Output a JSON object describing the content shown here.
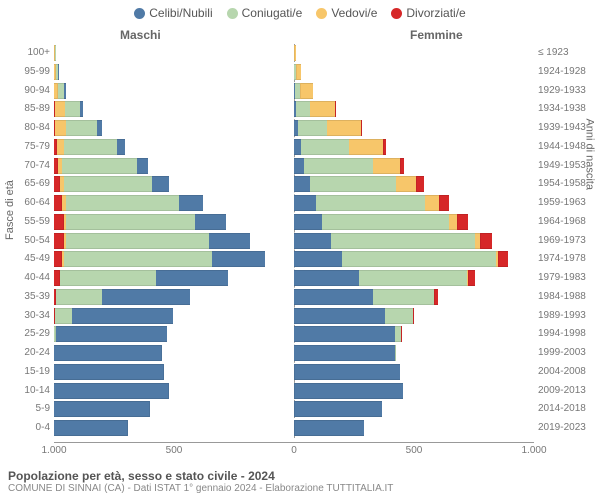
{
  "chart": {
    "type": "population-pyramid",
    "legend": [
      {
        "label": "Celibi/Nubili",
        "color": "#507aa6"
      },
      {
        "label": "Coniugati/e",
        "color": "#b7d6ae"
      },
      {
        "label": "Vedovi/e",
        "color": "#f7c66a"
      },
      {
        "label": "Divorziati/e",
        "color": "#d62728"
      }
    ],
    "headers": {
      "male": "Maschi",
      "female": "Femmine"
    },
    "y_title_left": "Fasce di età",
    "y_title_right": "Anni di nascita",
    "axis_color": "#999",
    "text_color": "#777",
    "background_color": "#ffffff",
    "x_max": 1000,
    "x_ticks": [
      -1000,
      -500,
      0,
      500,
      1000
    ],
    "x_tick_labels": [
      "1.000",
      "500",
      "0",
      "500",
      "1.000"
    ],
    "age_labels": [
      "0-4",
      "5-9",
      "10-14",
      "15-19",
      "20-24",
      "25-29",
      "30-34",
      "35-39",
      "40-44",
      "45-49",
      "50-54",
      "55-59",
      "60-64",
      "65-69",
      "70-74",
      "75-79",
      "80-84",
      "85-89",
      "90-94",
      "95-99",
      "100+"
    ],
    "birth_labels": [
      "2019-2023",
      "2014-2018",
      "2009-2013",
      "2004-2008",
      "1999-2003",
      "1994-1998",
      "1989-1993",
      "1984-1988",
      "1979-1983",
      "1974-1978",
      "1969-1973",
      "1964-1968",
      "1959-1963",
      "1954-1958",
      "1949-1953",
      "1944-1948",
      "1939-1943",
      "1934-1938",
      "1929-1933",
      "1924-1928",
      "≤ 1923"
    ],
    "colors": [
      "#507aa6",
      "#b7d6ae",
      "#f7c66a",
      "#d62728"
    ],
    "male": [
      [
        310,
        0,
        0,
        0
      ],
      [
        400,
        0,
        0,
        0
      ],
      [
        480,
        0,
        0,
        0
      ],
      [
        460,
        0,
        0,
        0
      ],
      [
        450,
        0,
        0,
        0
      ],
      [
        460,
        10,
        0,
        0
      ],
      [
        420,
        70,
        0,
        4
      ],
      [
        370,
        190,
        0,
        8
      ],
      [
        300,
        400,
        0,
        25
      ],
      [
        220,
        620,
        5,
        35
      ],
      [
        170,
        595,
        10,
        40
      ],
      [
        130,
        535,
        12,
        40
      ],
      [
        100,
        470,
        15,
        35
      ],
      [
        70,
        370,
        15,
        25
      ],
      [
        45,
        310,
        20,
        15
      ],
      [
        35,
        220,
        30,
        12
      ],
      [
        20,
        130,
        45,
        6
      ],
      [
        12,
        65,
        40,
        4
      ],
      [
        5,
        25,
        18,
        0
      ],
      [
        2,
        8,
        8,
        0
      ],
      [
        0,
        2,
        2,
        0
      ]
    ],
    "female": [
      [
        290,
        0,
        0,
        0
      ],
      [
        365,
        0,
        0,
        0
      ],
      [
        455,
        0,
        0,
        0
      ],
      [
        440,
        0,
        0,
        0
      ],
      [
        420,
        2,
        0,
        0
      ],
      [
        420,
        25,
        0,
        2
      ],
      [
        380,
        115,
        0,
        6
      ],
      [
        330,
        255,
        0,
        15
      ],
      [
        270,
        450,
        5,
        30
      ],
      [
        200,
        640,
        8,
        45
      ],
      [
        155,
        600,
        20,
        50
      ],
      [
        115,
        530,
        35,
        45
      ],
      [
        90,
        455,
        60,
        40
      ],
      [
        65,
        360,
        85,
        30
      ],
      [
        40,
        290,
        110,
        18
      ],
      [
        30,
        200,
        140,
        12
      ],
      [
        18,
        120,
        140,
        6
      ],
      [
        10,
        55,
        105,
        3
      ],
      [
        4,
        20,
        55,
        0
      ],
      [
        1,
        6,
        22,
        0
      ],
      [
        0,
        1,
        6,
        0
      ]
    ]
  },
  "footer": {
    "title": "Popolazione per età, sesso e stato civile - 2024",
    "subtitle": "COMUNE DI SINNAI (CA) - Dati ISTAT 1° gennaio 2024 - Elaborazione TUTTITALIA.IT"
  }
}
